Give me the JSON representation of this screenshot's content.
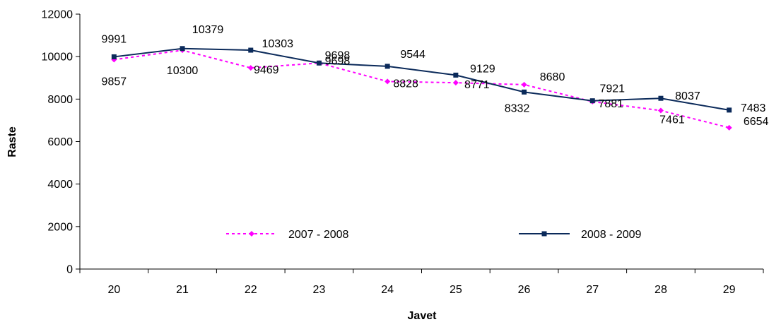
{
  "chart_data": {
    "type": "line",
    "title": "",
    "xlabel": "Javet",
    "ylabel": "Raste",
    "categories": [
      "20",
      "21",
      "22",
      "23",
      "24",
      "25",
      "26",
      "27",
      "28",
      "29"
    ],
    "ylim": [
      0,
      12000
    ],
    "yticks": [
      "0",
      "2000",
      "4000",
      "6000",
      "8000",
      "10000",
      "12000"
    ],
    "grid": false,
    "legend_position": "bottom-inside",
    "series": [
      {
        "name": "2007 - 2008",
        "values": [
          9857,
          10300,
          9469,
          9698,
          8828,
          8771,
          8680,
          7881,
          7461,
          6654
        ],
        "labels": [
          "9857",
          "10300",
          "9469",
          "9698",
          "8828",
          "8771",
          "8680",
          "7881",
          "7461",
          "6654"
        ],
        "color": "#ff00ff",
        "style": "dashed",
        "marker": "diamond"
      },
      {
        "name": "2008 - 2009",
        "values": [
          9991,
          10379,
          10303,
          9698,
          9544,
          9129,
          8332,
          7921,
          8037,
          7483
        ],
        "labels": [
          "9991",
          "10379",
          "10303",
          "9698",
          "9544",
          "9129",
          "8332",
          "7921",
          "8037",
          "7483"
        ],
        "color": "#0b2a5a",
        "style": "solid",
        "marker": "square"
      }
    ]
  }
}
